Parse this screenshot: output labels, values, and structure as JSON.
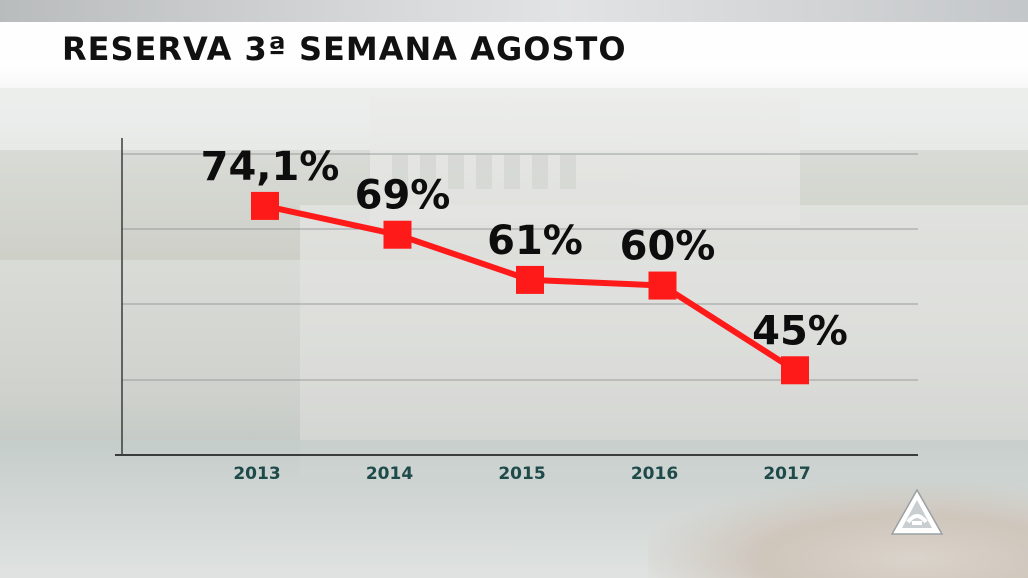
{
  "title": "RESERVA 3ª SEMANA AGOSTO",
  "chart_data": {
    "type": "line",
    "categories": [
      "2013",
      "2014",
      "2015",
      "2016",
      "2017"
    ],
    "values": [
      74.1,
      69,
      61,
      60,
      45
    ],
    "data_labels": [
      "74,1%",
      "69%",
      "61%",
      "60%",
      "45%"
    ],
    "xlabel": "",
    "ylabel": "",
    "ylim": [
      30,
      84
    ],
    "grid": true,
    "line_color": "#ff1a1a",
    "marker": "square"
  },
  "colors": {
    "line": "#ff1a1a",
    "tick_label": "#1f4a4a",
    "grid": "#8e9294",
    "axis": "#3a3d3e"
  },
  "logo": {
    "icon": "antena3-logo-icon"
  }
}
